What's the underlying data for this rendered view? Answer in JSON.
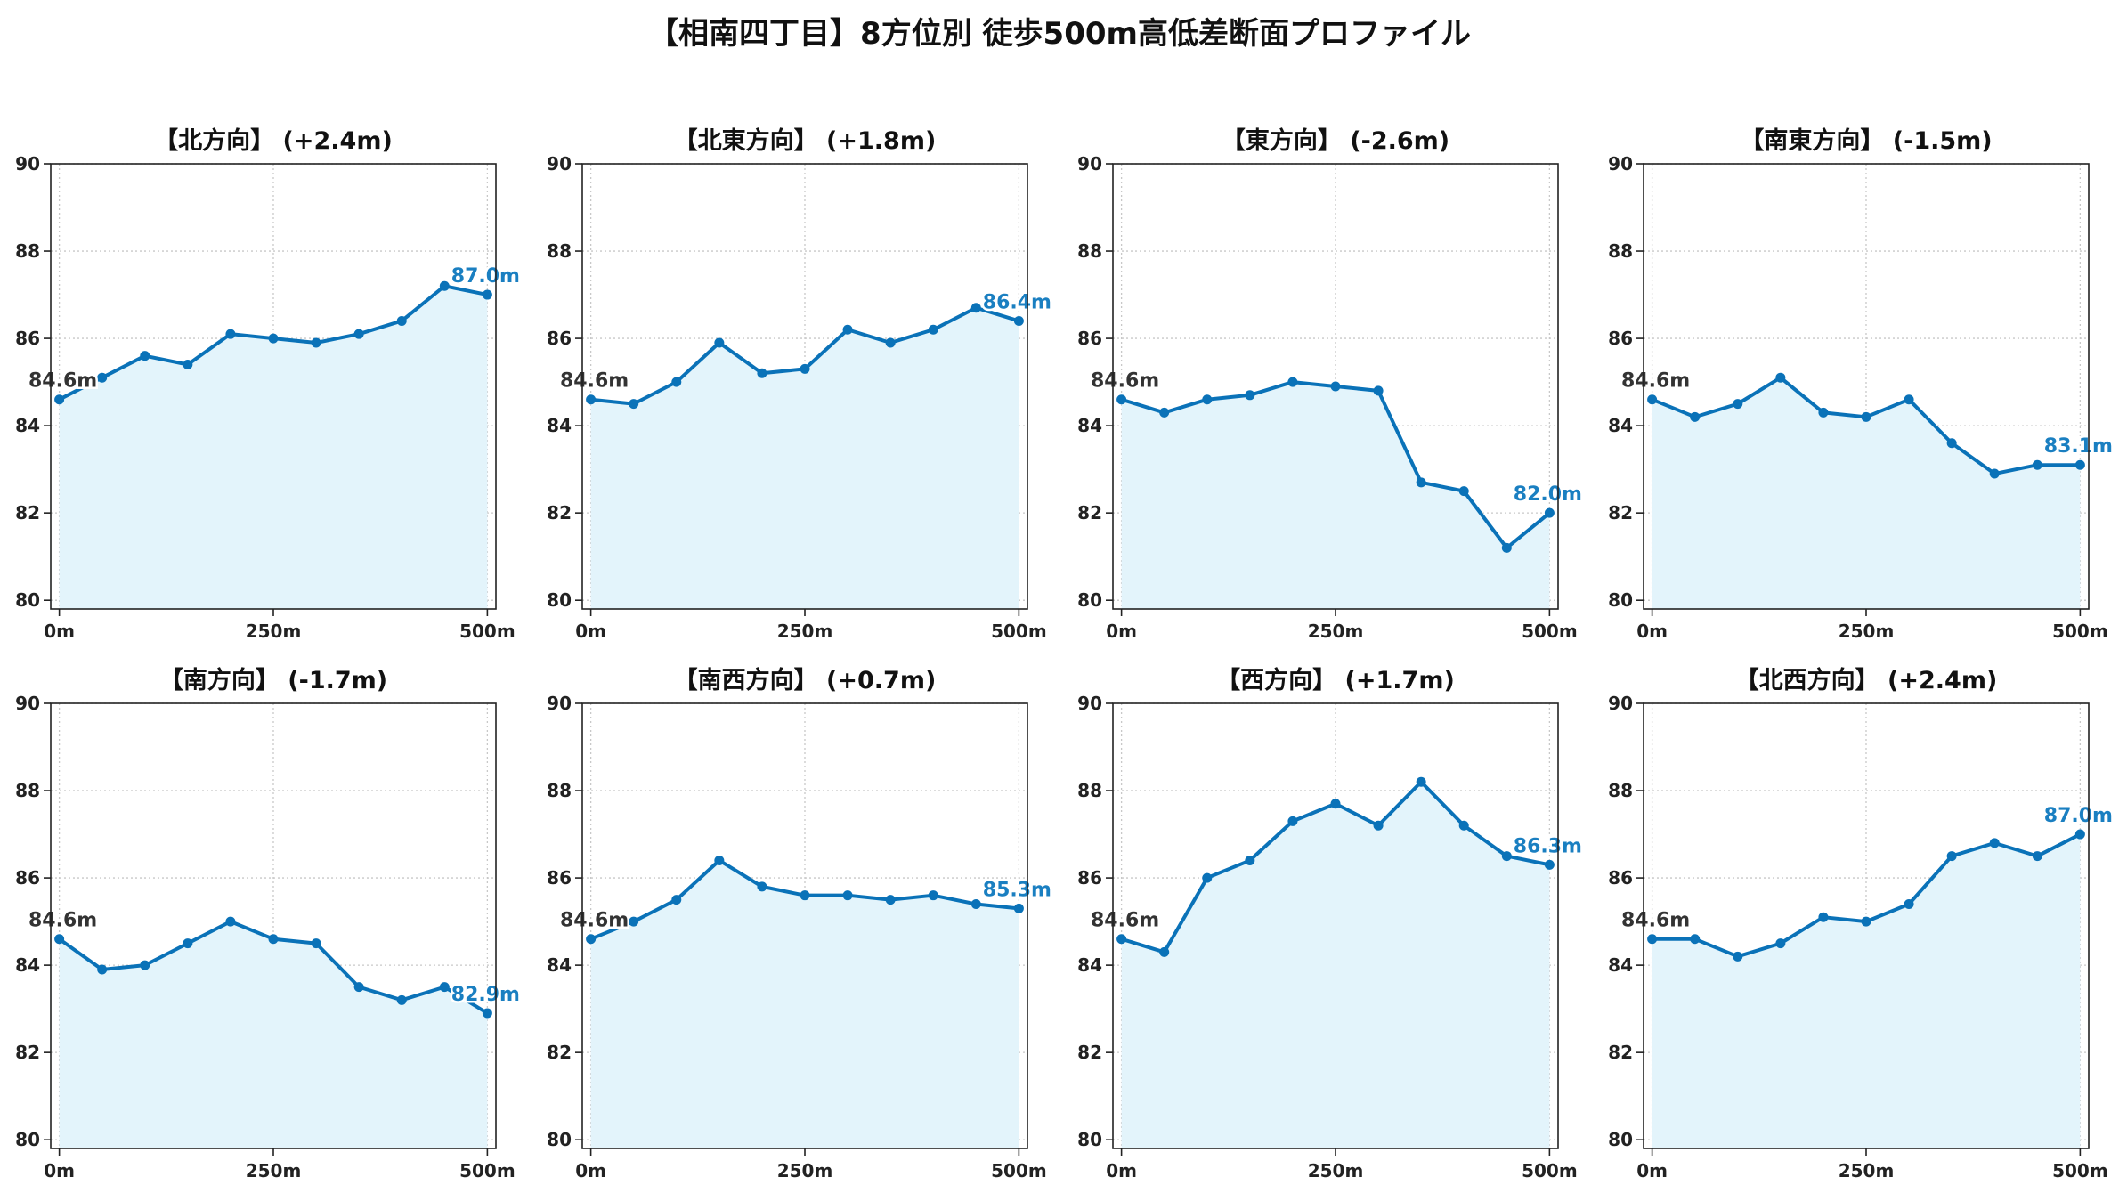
{
  "title": "【相南四丁目】8方位別 徒歩500m高低差断面プロファイル",
  "colors": {
    "line": "#0a72b8",
    "fill": "#e3f4fb",
    "grid": "#c8c8c8",
    "end_label": "#1a7fc1",
    "start_label": "#333333"
  },
  "chart_data": [
    {
      "type": "area",
      "title": "【北方向】 (+2.4m)",
      "x": [
        0,
        50,
        100,
        150,
        200,
        250,
        300,
        350,
        400,
        450,
        500
      ],
      "values": [
        84.6,
        85.1,
        85.6,
        85.4,
        86.1,
        86.0,
        85.9,
        86.1,
        86.4,
        87.2,
        87.0
      ],
      "start_label": "84.6m",
      "end_label": "87.0m",
      "xticks": [
        "0m",
        "250m",
        "500m"
      ],
      "yticks": [
        "80",
        "82",
        "84",
        "86",
        "88",
        "90"
      ],
      "ylim": [
        79.8,
        90
      ],
      "xlim": [
        -10,
        510
      ],
      "grid": true
    },
    {
      "type": "area",
      "title": "【北東方向】 (+1.8m)",
      "x": [
        0,
        50,
        100,
        150,
        200,
        250,
        300,
        350,
        400,
        450,
        500
      ],
      "values": [
        84.6,
        84.5,
        85.0,
        85.9,
        85.2,
        85.3,
        86.2,
        85.9,
        86.2,
        86.7,
        86.4
      ],
      "start_label": "84.6m",
      "end_label": "86.4m",
      "xticks": [
        "0m",
        "250m",
        "500m"
      ],
      "yticks": [
        "80",
        "82",
        "84",
        "86",
        "88",
        "90"
      ],
      "ylim": [
        79.8,
        90
      ],
      "xlim": [
        -10,
        510
      ],
      "grid": true
    },
    {
      "type": "area",
      "title": "【東方向】 (-2.6m)",
      "x": [
        0,
        50,
        100,
        150,
        200,
        250,
        300,
        350,
        400,
        450,
        500
      ],
      "values": [
        84.6,
        84.3,
        84.6,
        84.7,
        85.0,
        84.9,
        84.8,
        82.7,
        82.5,
        81.2,
        82.0
      ],
      "start_label": "84.6m",
      "end_label": "82.0m",
      "xticks": [
        "0m",
        "250m",
        "500m"
      ],
      "yticks": [
        "80",
        "82",
        "84",
        "86",
        "88",
        "90"
      ],
      "ylim": [
        79.8,
        90
      ],
      "xlim": [
        -10,
        510
      ],
      "grid": true
    },
    {
      "type": "area",
      "title": "【南東方向】 (-1.5m)",
      "x": [
        0,
        50,
        100,
        150,
        200,
        250,
        300,
        350,
        400,
        450,
        500
      ],
      "values": [
        84.6,
        84.2,
        84.5,
        85.1,
        84.3,
        84.2,
        84.6,
        83.6,
        82.9,
        83.1,
        83.1
      ],
      "start_label": "84.6m",
      "end_label": "83.1m",
      "xticks": [
        "0m",
        "250m",
        "500m"
      ],
      "yticks": [
        "80",
        "82",
        "84",
        "86",
        "88",
        "90"
      ],
      "ylim": [
        79.8,
        90
      ],
      "xlim": [
        -10,
        510
      ],
      "grid": true
    },
    {
      "type": "area",
      "title": "【南方向】 (-1.7m)",
      "x": [
        0,
        50,
        100,
        150,
        200,
        250,
        300,
        350,
        400,
        450,
        500
      ],
      "values": [
        84.6,
        83.9,
        84.0,
        84.5,
        85.0,
        84.6,
        84.5,
        83.5,
        83.2,
        83.5,
        82.9
      ],
      "start_label": "84.6m",
      "end_label": "82.9m",
      "xticks": [
        "0m",
        "250m",
        "500m"
      ],
      "yticks": [
        "80",
        "82",
        "84",
        "86",
        "88",
        "90"
      ],
      "ylim": [
        79.8,
        90
      ],
      "xlim": [
        -10,
        510
      ],
      "grid": true
    },
    {
      "type": "area",
      "title": "【南西方向】 (+0.7m)",
      "x": [
        0,
        50,
        100,
        150,
        200,
        250,
        300,
        350,
        400,
        450,
        500
      ],
      "values": [
        84.6,
        85.0,
        85.5,
        86.4,
        85.8,
        85.6,
        85.6,
        85.5,
        85.6,
        85.4,
        85.3
      ],
      "start_label": "84.6m",
      "end_label": "85.3m",
      "xticks": [
        "0m",
        "250m",
        "500m"
      ],
      "yticks": [
        "80",
        "82",
        "84",
        "86",
        "88",
        "90"
      ],
      "ylim": [
        79.8,
        90
      ],
      "xlim": [
        -10,
        510
      ],
      "grid": true
    },
    {
      "type": "area",
      "title": "【西方向】 (+1.7m)",
      "x": [
        0,
        50,
        100,
        150,
        200,
        250,
        300,
        350,
        400,
        450,
        500
      ],
      "values": [
        84.6,
        84.3,
        86.0,
        86.4,
        87.3,
        87.7,
        87.2,
        88.2,
        87.2,
        86.5,
        86.3
      ],
      "start_label": "84.6m",
      "end_label": "86.3m",
      "xticks": [
        "0m",
        "250m",
        "500m"
      ],
      "yticks": [
        "80",
        "82",
        "84",
        "86",
        "88",
        "90"
      ],
      "ylim": [
        79.8,
        90
      ],
      "xlim": [
        -10,
        510
      ],
      "grid": true
    },
    {
      "type": "area",
      "title": "【北西方向】 (+2.4m)",
      "x": [
        0,
        50,
        100,
        150,
        200,
        250,
        300,
        350,
        400,
        450,
        500
      ],
      "values": [
        84.6,
        84.6,
        84.2,
        84.5,
        85.1,
        85.0,
        85.4,
        86.5,
        86.8,
        86.5,
        87.0
      ],
      "start_label": "84.6m",
      "end_label": "87.0m",
      "xticks": [
        "0m",
        "250m",
        "500m"
      ],
      "yticks": [
        "80",
        "82",
        "84",
        "86",
        "88",
        "90"
      ],
      "ylim": [
        79.8,
        90
      ],
      "xlim": [
        -10,
        510
      ],
      "grid": true
    }
  ]
}
